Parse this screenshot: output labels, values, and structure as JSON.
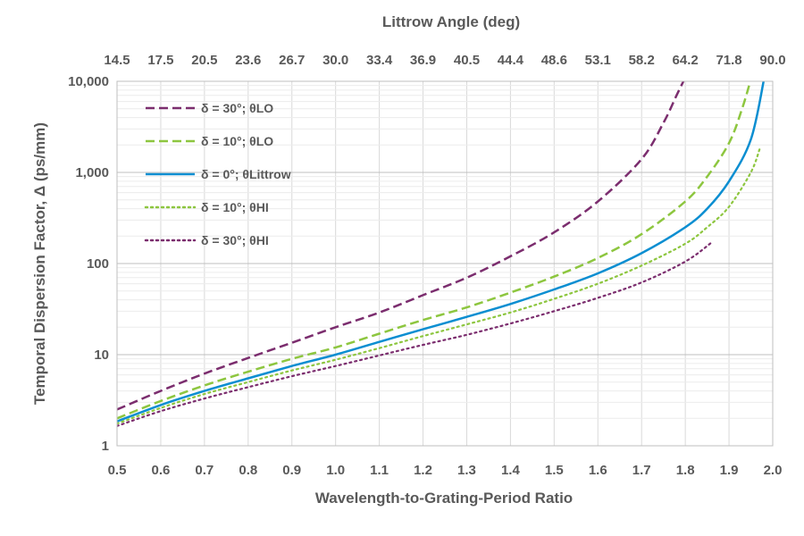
{
  "chart_data": {
    "type": "line",
    "top_axis": {
      "title": "Littrow Angle (deg)",
      "tick_labels": [
        "14.5",
        "17.5",
        "20.5",
        "23.6",
        "26.7",
        "30.0",
        "33.4",
        "36.9",
        "40.5",
        "44.4",
        "48.6",
        "53.1",
        "58.2",
        "64.2",
        "71.8",
        "90.0"
      ]
    },
    "xlabel": "Wavelength-to-Grating-Period Ratio",
    "ylabel": "Temporal Dispersion Factor, Δ (ps/mm)",
    "xlim": [
      0.5,
      2.0
    ],
    "ylim": [
      1,
      10000
    ],
    "yscale": "log",
    "x_tick_labels": [
      "0.5",
      "0.6",
      "0.7",
      "0.8",
      "0.9",
      "1.0",
      "1.1",
      "1.2",
      "1.3",
      "1.4",
      "1.5",
      "1.6",
      "1.7",
      "1.8",
      "1.9",
      "2.0"
    ],
    "y_tick_labels": [
      "1",
      "10",
      "100",
      "1,000",
      "10,000"
    ],
    "grid": true,
    "legend_position": "top-left",
    "series": [
      {
        "name": "δ = 30°; θLO",
        "color": "#7B2D6E",
        "style": "dashed",
        "x": [
          0.5,
          0.6,
          0.7,
          0.8,
          0.9,
          1.0,
          1.1,
          1.2,
          1.3,
          1.4,
          1.5,
          1.6,
          1.7,
          1.75,
          1.78,
          1.8
        ],
        "y": [
          2.5,
          4.0,
          6.2,
          9.2,
          13.5,
          20,
          29,
          45,
          70,
          120,
          220,
          480,
          1400,
          3500,
          7000,
          11000
        ]
      },
      {
        "name": "δ = 10°; θLO",
        "color": "#8DC63F",
        "style": "dashed",
        "x": [
          0.5,
          0.6,
          0.7,
          0.8,
          0.9,
          1.0,
          1.1,
          1.2,
          1.3,
          1.4,
          1.5,
          1.6,
          1.7,
          1.8,
          1.85,
          1.9,
          1.93,
          1.95
        ],
        "y": [
          2.0,
          3.1,
          4.6,
          6.5,
          9.0,
          12,
          17,
          24,
          33,
          48,
          72,
          115,
          210,
          480,
          900,
          2100,
          5000,
          10500
        ]
      },
      {
        "name": "δ = 0°; θLittrow",
        "color": "#0B8ED1",
        "style": "solid",
        "x": [
          0.5,
          0.6,
          0.7,
          0.8,
          0.9,
          1.0,
          1.1,
          1.2,
          1.3,
          1.4,
          1.5,
          1.6,
          1.7,
          1.8,
          1.85,
          1.9,
          1.95,
          1.98
        ],
        "y": [
          1.85,
          2.8,
          4.0,
          5.5,
          7.5,
          10,
          13.8,
          19,
          26,
          36,
          52,
          78,
          130,
          250,
          400,
          800,
          2300,
          10500
        ]
      },
      {
        "name": "δ = 10°; θHI",
        "color": "#8DC63F",
        "style": "dotted",
        "x": [
          0.5,
          0.6,
          0.7,
          0.8,
          0.9,
          1.0,
          1.1,
          1.2,
          1.3,
          1.4,
          1.5,
          1.6,
          1.7,
          1.8,
          1.85,
          1.9,
          1.95,
          1.97
        ],
        "y": [
          1.75,
          2.6,
          3.7,
          5.0,
          6.7,
          8.8,
          11.8,
          16,
          21.5,
          29,
          41,
          60,
          95,
          165,
          250,
          420,
          1000,
          1800
        ]
      },
      {
        "name": "δ = 30°; θHI",
        "color": "#7B2D6E",
        "style": "dotted",
        "x": [
          0.5,
          0.6,
          0.7,
          0.8,
          0.9,
          1.0,
          1.1,
          1.2,
          1.3,
          1.4,
          1.5,
          1.6,
          1.7,
          1.8,
          1.86
        ],
        "y": [
          1.65,
          2.4,
          3.3,
          4.4,
          5.8,
          7.5,
          9.8,
          12.8,
          16.5,
          22,
          30,
          42,
          62,
          105,
          170
        ]
      }
    ]
  }
}
